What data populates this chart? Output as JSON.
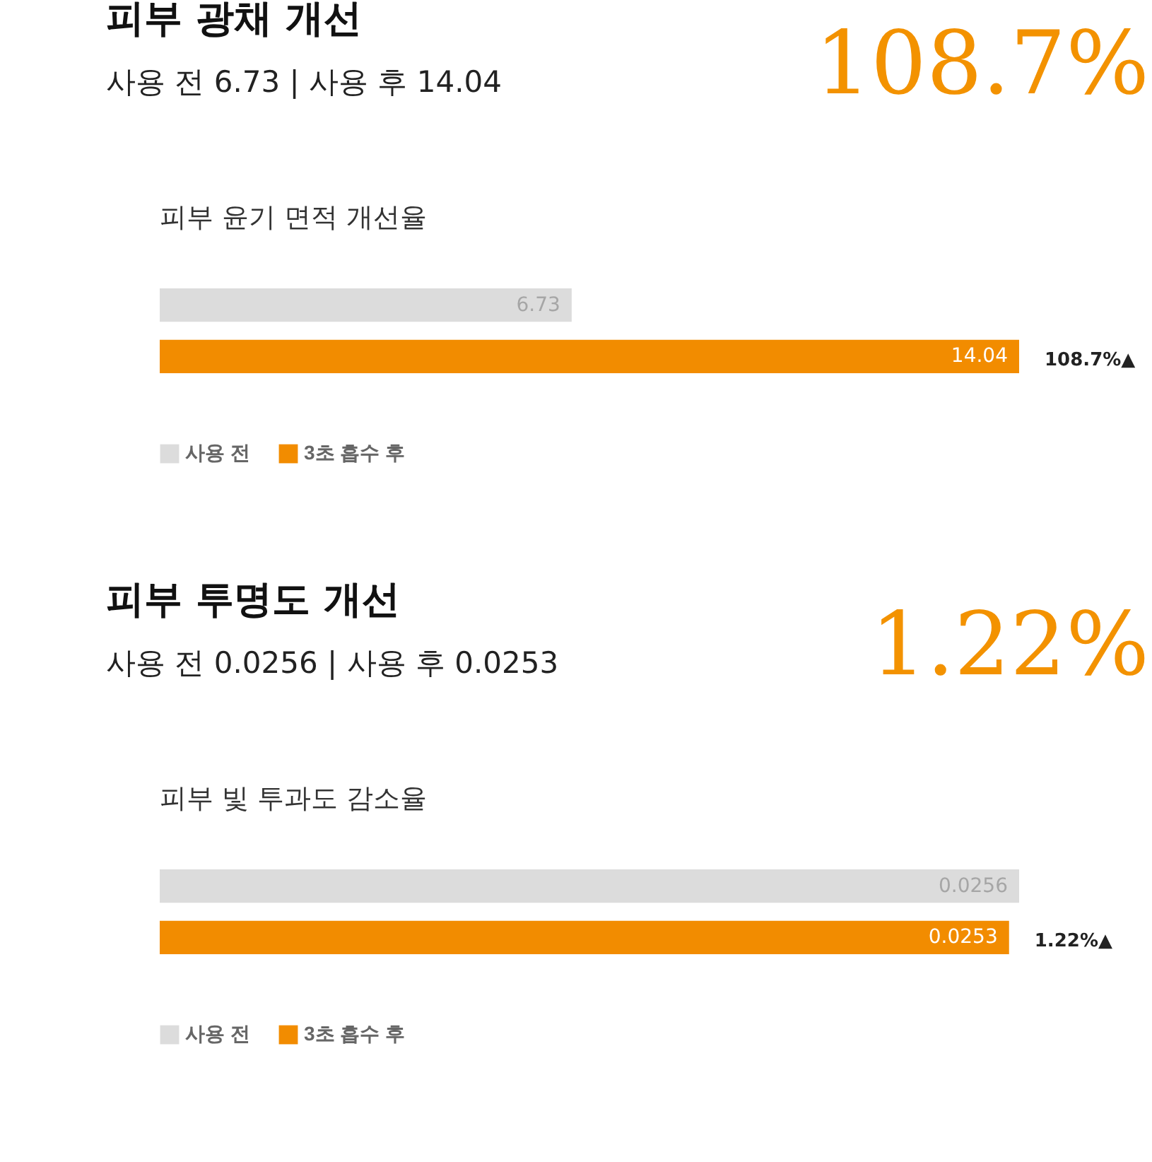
{
  "chart_data": [
    {
      "type": "bar",
      "orientation": "horizontal",
      "title": "피부 광채 개선",
      "subtitle": "사용 전 6.73  |  사용 후 14.04",
      "annotations": [
        "108.7%",
        "피부 윤기 면적 개선율",
        {
          "text": "108.7%▲",
          "x": 14.04
        }
      ],
      "categories": [
        null
      ],
      "data_labels": true,
      "legend": "bottom left",
      "series": [
        {
          "name": "사용 전",
          "color": "#dcdcdc",
          "values": [
            6.73
          ]
        },
        {
          "name": "3초 흡수 후",
          "color": "#f28c00",
          "values": [
            14.04
          ]
        }
      ]
    },
    {
      "type": "bar",
      "orientation": "horizontal",
      "title": "피부 투명도 개선",
      "subtitle": "사용 전 0.0256  |  사용 후 0.0253",
      "annotations": [
        "1.22%",
        "피부 빛 투과도 감소율",
        {
          "text": "1.22%▲",
          "x": 0.0253
        }
      ],
      "categories": [
        null
      ],
      "data_labels": true,
      "legend": "bottom left",
      "series": [
        {
          "name": "사용 전",
          "color": "#dcdcdc",
          "values": [
            0.0256
          ]
        },
        {
          "name": "3초 흡수 후",
          "color": "#f28c00",
          "values": [
            0.0253
          ]
        }
      ]
    }
  ]
}
